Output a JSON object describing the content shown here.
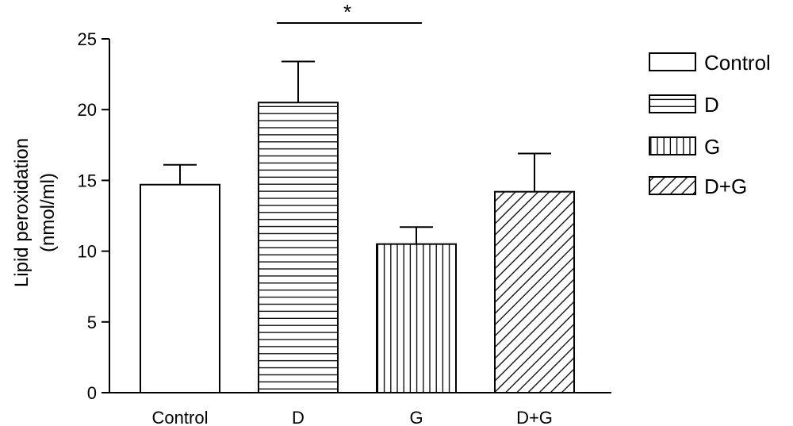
{
  "chart_data": {
    "type": "bar",
    "categories": [
      "Control",
      "D",
      "G",
      "D+G"
    ],
    "values": [
      14.7,
      20.5,
      10.5,
      14.2
    ],
    "errors": [
      1.4,
      2.9,
      1.2,
      2.7
    ],
    "ylabel_line1": "Lipid peroxidation",
    "ylabel_line2": "(nmol/ml)",
    "xlabel": "",
    "ylim": [
      0,
      25
    ],
    "yticks": [
      0,
      5,
      10,
      15,
      20,
      25
    ],
    "grid": false,
    "legend": {
      "placement": "right",
      "entries": [
        "Control",
        "D",
        "G",
        "D+G"
      ]
    },
    "patterns": [
      "none",
      "horizontal-lines",
      "vertical-lines",
      "diagonal-lines"
    ],
    "significance": {
      "from": "D",
      "to": "G",
      "label": "*"
    }
  }
}
